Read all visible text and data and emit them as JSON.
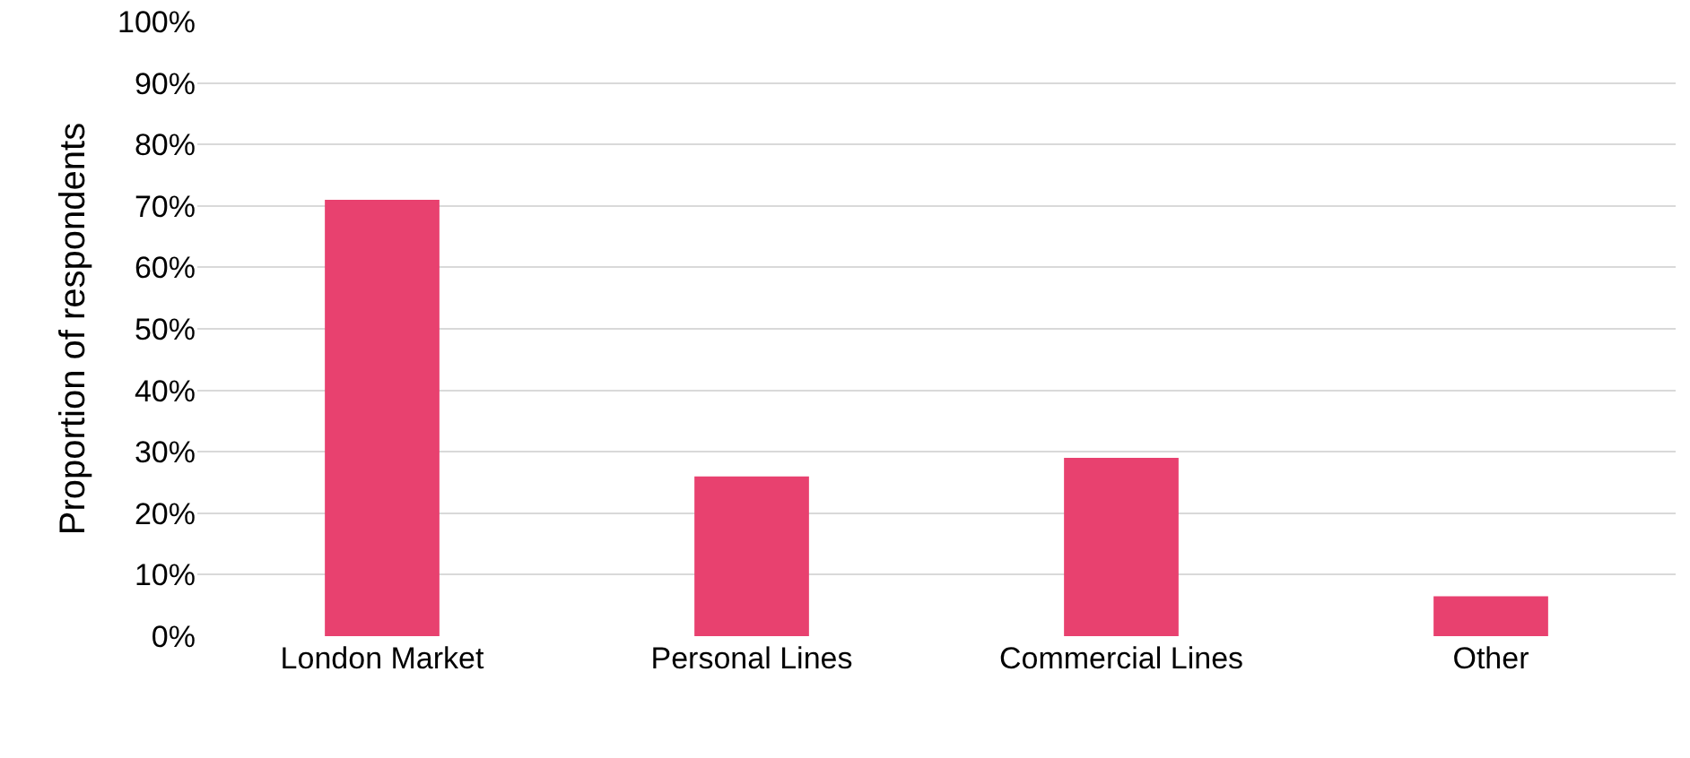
{
  "chart_data": {
    "type": "bar",
    "ylabel": "Proportion of respondents",
    "categories": [
      "London Market",
      "Personal Lines",
      "Commercial Lines",
      "Other"
    ],
    "values": [
      71,
      26,
      29,
      6.5
    ],
    "color": "#e8416f",
    "ylim": [
      0,
      100
    ],
    "yticks": [
      {
        "value": 0,
        "label": "0%"
      },
      {
        "value": 10,
        "label": "10%"
      },
      {
        "value": 20,
        "label": "20%"
      },
      {
        "value": 30,
        "label": "30%"
      },
      {
        "value": 40,
        "label": "40%"
      },
      {
        "value": 50,
        "label": "50%"
      },
      {
        "value": 60,
        "label": "60%"
      },
      {
        "value": 70,
        "label": "70%"
      },
      {
        "value": 80,
        "label": "80%"
      },
      {
        "value": 90,
        "label": "90%"
      },
      {
        "value": 100,
        "label": "100%"
      }
    ],
    "grid": "y"
  }
}
